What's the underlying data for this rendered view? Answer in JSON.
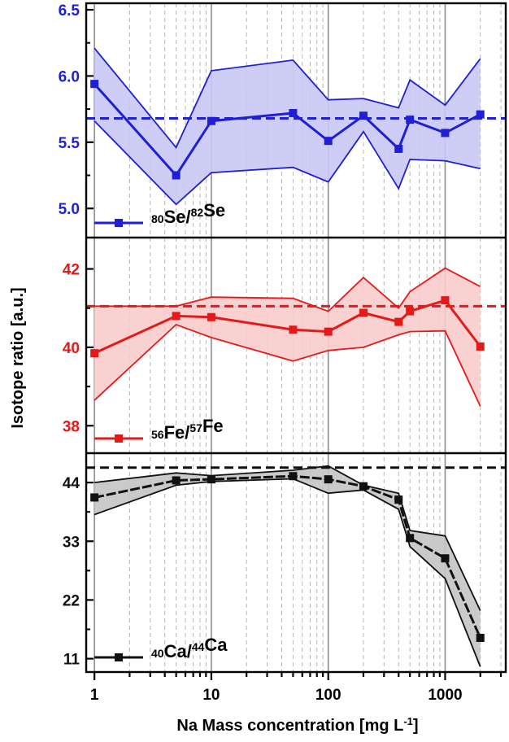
{
  "chart_data": {
    "type": "line",
    "xlabel_main": "Na Mass concentration [mg L",
    "xlabel_sup": "-1",
    "xlabel_end": "]",
    "ylabel": "Isotope ratio [a.u.]",
    "x_scale": "log",
    "xlim": [
      0.85,
      3300
    ],
    "x_ticks": [
      1,
      10,
      100,
      1000
    ],
    "x_tick_labels": [
      "1",
      "10",
      "100",
      "1000"
    ],
    "grid": "vertical",
    "panels": [
      {
        "color": "#1f1fd6",
        "fill": "#c8c8f5",
        "ylim": [
          4.78,
          6.5
        ],
        "y_ticks": [
          5.0,
          5.5,
          6.0,
          6.5
        ],
        "y_tick_labels": [
          "5.0",
          "5.5",
          "6.0",
          "6.5"
        ],
        "reference": 5.68,
        "legend": {
          "iso1": "80",
          "el1": "Se",
          "iso2": "82",
          "el2": "Se"
        },
        "series": {
          "x": [
            1,
            5,
            10,
            50,
            100,
            200,
            400,
            500,
            1000,
            2000
          ],
          "y": [
            5.94,
            5.25,
            5.66,
            5.72,
            5.51,
            5.7,
            5.45,
            5.67,
            5.57,
            5.71
          ],
          "upper": [
            6.21,
            5.46,
            6.04,
            6.12,
            5.82,
            5.83,
            5.76,
            5.97,
            5.78,
            6.13
          ],
          "lower": [
            5.66,
            5.03,
            5.27,
            5.31,
            5.2,
            5.58,
            5.15,
            5.37,
            5.36,
            5.3
          ]
        }
      },
      {
        "color": "#e41a1a",
        "fill": "#f8cccc",
        "ylim": [
          37.3,
          42.8
        ],
        "y_ticks": [
          38,
          40,
          42
        ],
        "y_tick_labels": [
          "38",
          "40",
          "42"
        ],
        "reference": 41.05,
        "legend": {
          "iso1": "56",
          "el1": "Fe",
          "iso2": "57",
          "el2": "Fe"
        },
        "series": {
          "x": [
            1,
            5,
            10,
            50,
            100,
            200,
            400,
            500,
            1000,
            2000
          ],
          "y": [
            39.85,
            40.8,
            40.77,
            40.45,
            40.4,
            40.88,
            40.65,
            40.92,
            41.2,
            40.02
          ],
          "upper": [
            41.05,
            41.05,
            41.28,
            41.25,
            40.92,
            41.78,
            41.0,
            41.42,
            42.02,
            41.55
          ],
          "lower": [
            38.65,
            40.58,
            40.25,
            39.65,
            39.92,
            40.0,
            40.32,
            40.4,
            40.42,
            38.5
          ]
        }
      },
      {
        "color": "#111111",
        "fill": "#c4c4c4",
        "ylim": [
          8.5,
          49.5
        ],
        "y_ticks": [
          11,
          22,
          33,
          44
        ],
        "y_tick_labels": [
          "11",
          "22",
          "33",
          "44"
        ],
        "reference": 46.8,
        "legend": {
          "iso1": "40",
          "el1": "Ca",
          "iso2": "44",
          "el2": "Ca"
        },
        "series": {
          "x": [
            1,
            5,
            10,
            50,
            100,
            200,
            400,
            500,
            1000,
            2000
          ],
          "y": [
            41.2,
            44.4,
            44.6,
            45.2,
            44.6,
            43.3,
            40.8,
            33.6,
            29.8,
            14.9
          ],
          "upper": [
            44.0,
            45.8,
            45.3,
            46.3,
            47.1,
            43.5,
            42.0,
            35.0,
            34.0,
            20.0
          ],
          "lower": [
            38.0,
            43.5,
            44.2,
            44.7,
            42.0,
            42.6,
            39.0,
            32.0,
            26.0,
            9.5
          ]
        }
      }
    ]
  }
}
